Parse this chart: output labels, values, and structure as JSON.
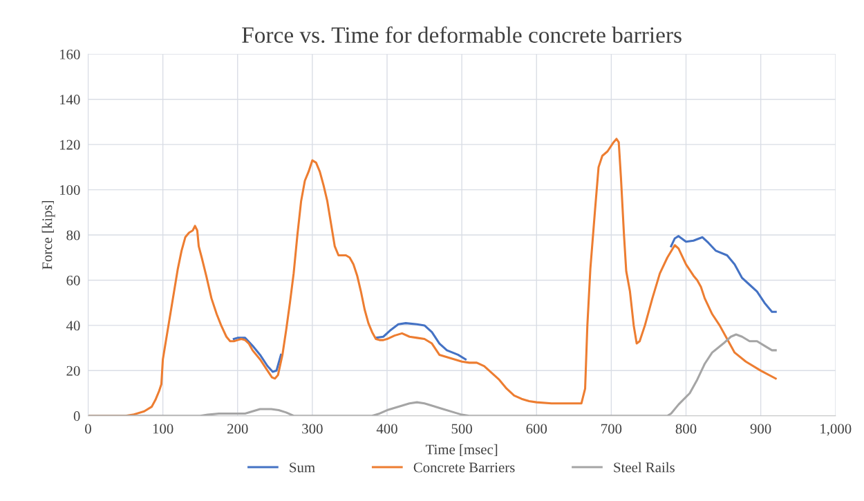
{
  "chart_data": {
    "type": "line",
    "title": "Force vs. Time for deformable concrete barriers",
    "xlabel": "Time [msec]",
    "ylabel": "Force [kips]",
    "series": [
      {
        "name": "Sum",
        "color": "#4472c4",
        "x": [
          195,
          200,
          210,
          220,
          230,
          240,
          247,
          252,
          258,
          300,
          385,
          395,
          405,
          415,
          425,
          440,
          450,
          460,
          470,
          480,
          495,
          505,
          600,
          780,
          785,
          790,
          800,
          810,
          822,
          830,
          840,
          855,
          865,
          875,
          885,
          895,
          905,
          915,
          920
        ],
        "values": [
          34,
          34.5,
          34.5,
          31,
          27,
          22,
          19.5,
          20,
          27,
          null,
          34.5,
          35,
          38,
          40.5,
          41,
          40.5,
          40,
          37,
          32,
          29,
          27,
          25,
          null,
          75,
          78.5,
          79.5,
          77,
          77.5,
          79,
          76.5,
          73,
          71,
          67,
          61,
          58,
          55,
          50,
          46,
          46
        ]
      },
      {
        "name": "Concrete Barriers",
        "color": "#ed7d31",
        "x": [
          0,
          50,
          60,
          75,
          85,
          90,
          95,
          98,
          100,
          105,
          110,
          115,
          120,
          125,
          130,
          135,
          140,
          143,
          146,
          148,
          152,
          158,
          165,
          172,
          178,
          185,
          190,
          195,
          200,
          205,
          210,
          215,
          220,
          230,
          240,
          246,
          250,
          254,
          260,
          265,
          270,
          275,
          280,
          285,
          290,
          295,
          300,
          305,
          310,
          315,
          320,
          325,
          330,
          335,
          345,
          350,
          355,
          360,
          365,
          370,
          375,
          380,
          385,
          390,
          395,
          400,
          410,
          420,
          430,
          440,
          450,
          460,
          470,
          480,
          490,
          500,
          510,
          520,
          530,
          540,
          550,
          560,
          570,
          580,
          590,
          600,
          620,
          640,
          660,
          665,
          668,
          672,
          678,
          683,
          688,
          695,
          703,
          707,
          710,
          713,
          717,
          720,
          725,
          730,
          734,
          738,
          745,
          755,
          765,
          775,
          785,
          790,
          800,
          810,
          815,
          820,
          825,
          835,
          845,
          855,
          865,
          880,
          900,
          920
        ],
        "values": [
          0,
          0,
          0.5,
          2,
          4,
          7,
          11,
          14,
          25,
          35,
          45,
          55,
          65,
          73,
          79,
          81,
          82,
          84,
          82,
          75,
          70,
          62,
          52,
          45,
          40,
          35,
          33,
          33,
          33.5,
          34,
          33.5,
          32,
          29,
          25,
          20,
          17,
          16.5,
          18,
          27,
          38,
          50,
          63,
          80,
          95,
          104,
          108,
          113,
          112,
          108,
          102,
          95,
          85,
          75,
          71,
          71,
          70,
          67,
          62,
          55,
          47,
          41,
          37,
          34,
          33.5,
          33.5,
          34,
          35.5,
          36.5,
          35,
          34.5,
          34,
          32,
          27,
          26,
          25,
          24,
          23.5,
          23.5,
          22,
          19,
          16,
          12,
          9,
          7.5,
          6.5,
          6,
          5.5,
          5.5,
          5.5,
          12,
          40,
          65,
          90,
          110,
          115,
          117,
          121,
          122.5,
          121,
          105,
          80,
          64,
          55,
          40,
          32,
          33,
          40,
          52,
          63,
          70,
          75.5,
          74,
          67,
          62,
          60,
          57,
          52,
          45,
          40,
          34,
          28,
          24,
          20,
          16.5
        ]
      },
      {
        "name": "Steel Rails",
        "color": "#a5a5a5",
        "x": [
          0,
          150,
          160,
          175,
          200,
          210,
          220,
          230,
          245,
          255,
          265,
          275,
          380,
          390,
          400,
          420,
          430,
          440,
          450,
          460,
          475,
          490,
          500,
          510,
          775,
          780,
          790,
          805,
          815,
          825,
          835,
          850,
          860,
          867,
          875,
          885,
          895,
          905,
          915,
          920
        ],
        "values": [
          0,
          0,
          0.5,
          1,
          1,
          1,
          2,
          3,
          3,
          2.5,
          1.5,
          0,
          0,
          1,
          2.5,
          4.5,
          5.5,
          6,
          5.5,
          4.5,
          3,
          1.5,
          0.5,
          0,
          0,
          1,
          5,
          10,
          16,
          23,
          28,
          32,
          35,
          36,
          35,
          33,
          33,
          31,
          29,
          29
        ]
      }
    ],
    "xlim": [
      0,
      1000
    ],
    "xticks": [
      0,
      100,
      200,
      300,
      400,
      500,
      600,
      700,
      800,
      900,
      {
        "value": 1000,
        "label": "1,000"
      }
    ],
    "ylim": [
      0,
      160
    ],
    "yticks": [
      0,
      20,
      40,
      60,
      80,
      100,
      120,
      140,
      160
    ],
    "grid": true,
    "legend": "bottom",
    "marker": "none",
    "line_style": "solid"
  }
}
